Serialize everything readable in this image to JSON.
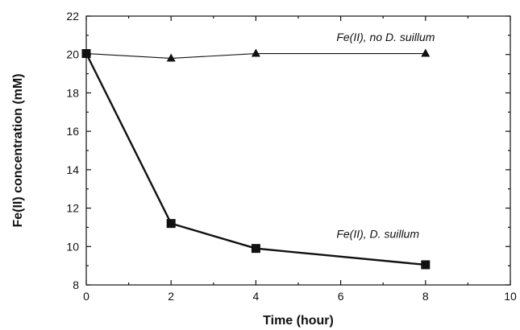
{
  "chart_data": {
    "type": "line",
    "xlabel": "Time (hour)",
    "ylabel": "Fe(II) concentration  (mM)",
    "xlim": [
      0,
      10
    ],
    "ylim": [
      8,
      22
    ],
    "xticks": [
      0,
      2,
      4,
      6,
      8,
      10
    ],
    "yticks": [
      8,
      10,
      12,
      14,
      16,
      18,
      20,
      22
    ],
    "grid": false,
    "series": [
      {
        "name": "Fe(II), no D. suillum",
        "marker": "triangle",
        "line": "thin",
        "x": [
          0,
          2,
          4,
          8
        ],
        "y": [
          20.05,
          19.8,
          20.05,
          20.05
        ]
      },
      {
        "name": "Fe(II), D. suillum",
        "marker": "square",
        "line": "thick",
        "x": [
          0,
          2,
          4,
          8
        ],
        "y": [
          20.05,
          11.2,
          9.9,
          9.05
        ]
      }
    ],
    "annotations": [
      {
        "text": "Fe(II), no D. suillum",
        "x": 5.9,
        "y": 20.7
      },
      {
        "text": "Fe(II), D. suillum",
        "x": 5.9,
        "y": 10.45
      }
    ]
  }
}
